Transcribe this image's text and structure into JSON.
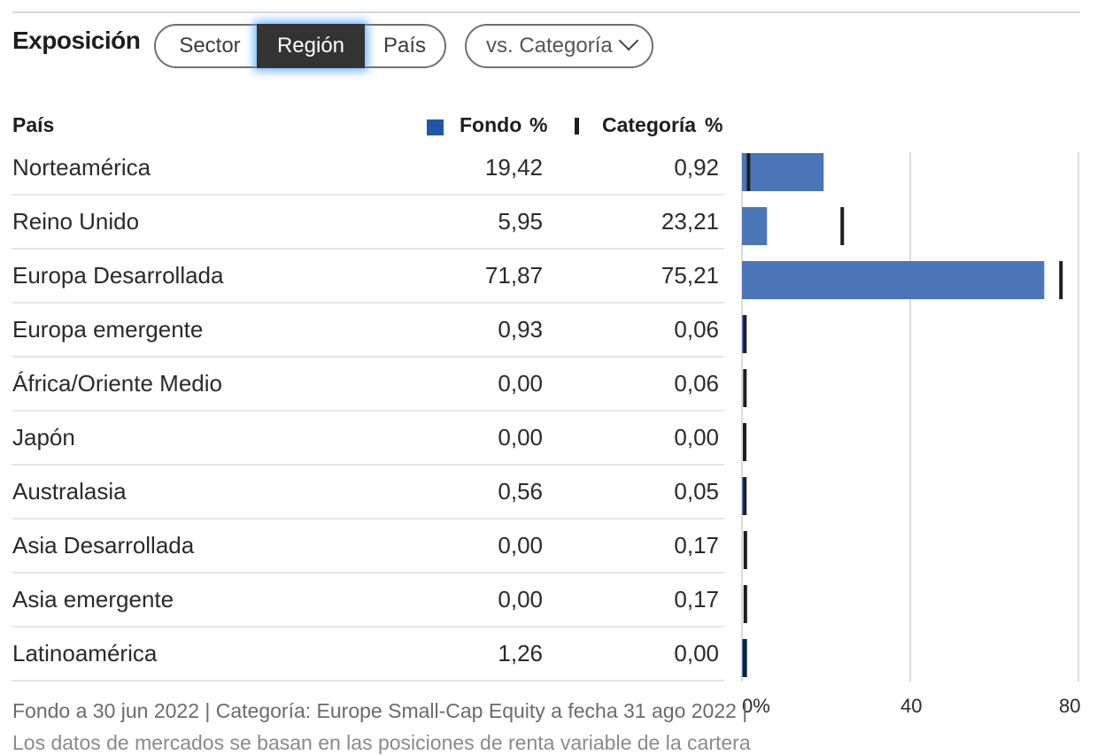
{
  "section_title": "Exposición",
  "tabs": [
    {
      "label": "Sector",
      "selected": false
    },
    {
      "label": "Región",
      "selected": true
    },
    {
      "label": "País",
      "selected": false
    }
  ],
  "compare_dropdown": {
    "label": "vs. Categoría"
  },
  "table": {
    "col_name": "País",
    "col_fondo": "Fondo",
    "col_fondo_unit": "%",
    "col_cat": "Categoría",
    "col_cat_unit": "%"
  },
  "colors": {
    "fondo": "#4a76b8",
    "legend_fondo": "#1f57a8",
    "categoria": "#1e1e1e"
  },
  "chart_data": {
    "type": "bar",
    "categories": [
      "Norteamérica",
      "Reino Unido",
      "Europa Desarrollada",
      "Europa emergente",
      "África/Oriente Medio",
      "Japón",
      "Australasia",
      "Asia Desarrollada",
      "Asia emergente",
      "Latinoamérica"
    ],
    "series": [
      {
        "name": "Fondo",
        "values": [
          19.42,
          5.95,
          71.87,
          0.93,
          0.0,
          0.0,
          0.56,
          0.0,
          0.0,
          1.26
        ]
      },
      {
        "name": "Categoría",
        "values": [
          0.92,
          23.21,
          75.21,
          0.06,
          0.06,
          0.0,
          0.05,
          0.17,
          0.17,
          0.0
        ]
      }
    ],
    "fondo_labels": [
      "19,42",
      "5,95",
      "71,87",
      "0,93",
      "0,00",
      "0,00",
      "0,56",
      "0,00",
      "0,00",
      "1,26"
    ],
    "cat_labels": [
      "0,92",
      "23,21",
      "75,21",
      "0,06",
      "0,06",
      "0,00",
      "0,05",
      "0,17",
      "0,17",
      "0,00"
    ],
    "xlim": [
      0,
      80
    ],
    "ticks": [
      "0%",
      "40",
      "80"
    ]
  },
  "footer": "Fondo a 30 jun 2022 | Categoría: Europe Small-Cap Equity a fecha 31 ago 2022 |",
  "footer_line2": "Los datos de mercados se basan en las posiciones de renta variable de la cartera"
}
